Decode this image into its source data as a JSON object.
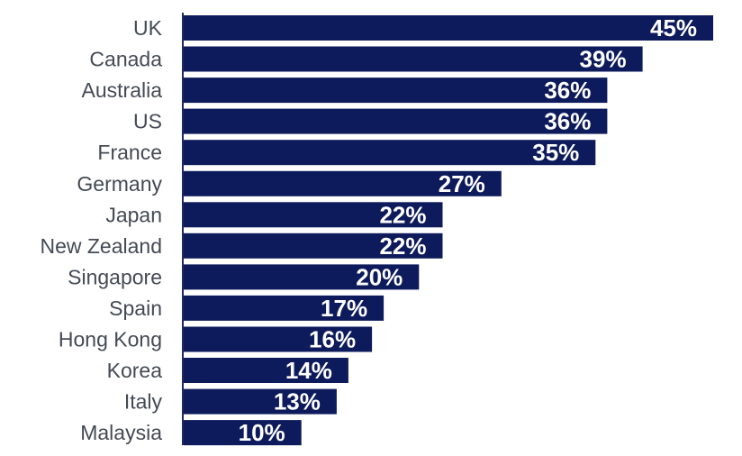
{
  "chart_data": {
    "type": "bar",
    "orientation": "horizontal",
    "title": "",
    "xlabel": "",
    "ylabel": "",
    "xlim": [
      0,
      45
    ],
    "value_suffix": "%",
    "bar_color": "#0d1b5c",
    "axis_color": "#1e2a5a",
    "categories": [
      "UK",
      "Canada",
      "Australia",
      "US",
      "France",
      "Germany",
      "Japan",
      "New Zealand",
      "Singapore",
      "Spain",
      "Hong Kong",
      "Korea",
      "Italy",
      "Malaysia"
    ],
    "values": [
      45,
      39,
      36,
      36,
      35,
      27,
      22,
      22,
      20,
      17,
      16,
      14,
      13,
      10
    ],
    "value_labels": [
      "45%",
      "39%",
      "36%",
      "36%",
      "35%",
      "27%",
      "22%",
      "22%",
      "20%",
      "17%",
      "16%",
      "14%",
      "13%",
      "10%"
    ]
  }
}
